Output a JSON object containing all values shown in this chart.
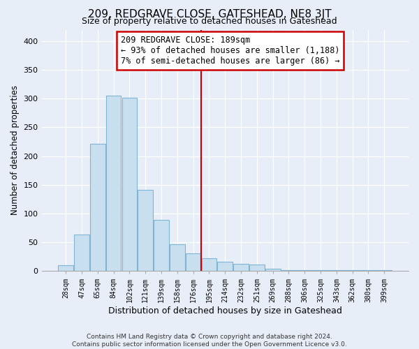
{
  "title": "209, REDGRAVE CLOSE, GATESHEAD, NE8 3JT",
  "subtitle": "Size of property relative to detached houses in Gateshead",
  "xlabel": "Distribution of detached houses by size in Gateshead",
  "ylabel": "Number of detached properties",
  "bar_labels": [
    "28sqm",
    "47sqm",
    "65sqm",
    "84sqm",
    "102sqm",
    "121sqm",
    "139sqm",
    "158sqm",
    "176sqm",
    "195sqm",
    "214sqm",
    "232sqm",
    "251sqm",
    "269sqm",
    "288sqm",
    "306sqm",
    "325sqm",
    "343sqm",
    "362sqm",
    "380sqm",
    "399sqm"
  ],
  "bar_values": [
    10,
    63,
    222,
    305,
    302,
    141,
    89,
    46,
    31,
    22,
    16,
    13,
    11,
    4,
    2,
    2,
    1,
    1,
    1,
    1,
    1
  ],
  "bar_color": "#c8dff0",
  "bar_edge_color": "#7fb4d4",
  "vline_x": 8.5,
  "vline_color": "#cc0000",
  "annotation_title": "209 REDGRAVE CLOSE: 189sqm",
  "annotation_line1": "← 93% of detached houses are smaller (1,188)",
  "annotation_line2": "7% of semi-detached houses are larger (86) →",
  "annotation_box_color": "#ffffff",
  "annotation_box_edge": "#cc0000",
  "footer_line1": "Contains HM Land Registry data © Crown copyright and database right 2024.",
  "footer_line2": "Contains public sector information licensed under the Open Government Licence v3.0.",
  "ylim": [
    0,
    420
  ],
  "yticks": [
    0,
    50,
    100,
    150,
    200,
    250,
    300,
    350,
    400
  ],
  "background_color": "#e8eef8"
}
